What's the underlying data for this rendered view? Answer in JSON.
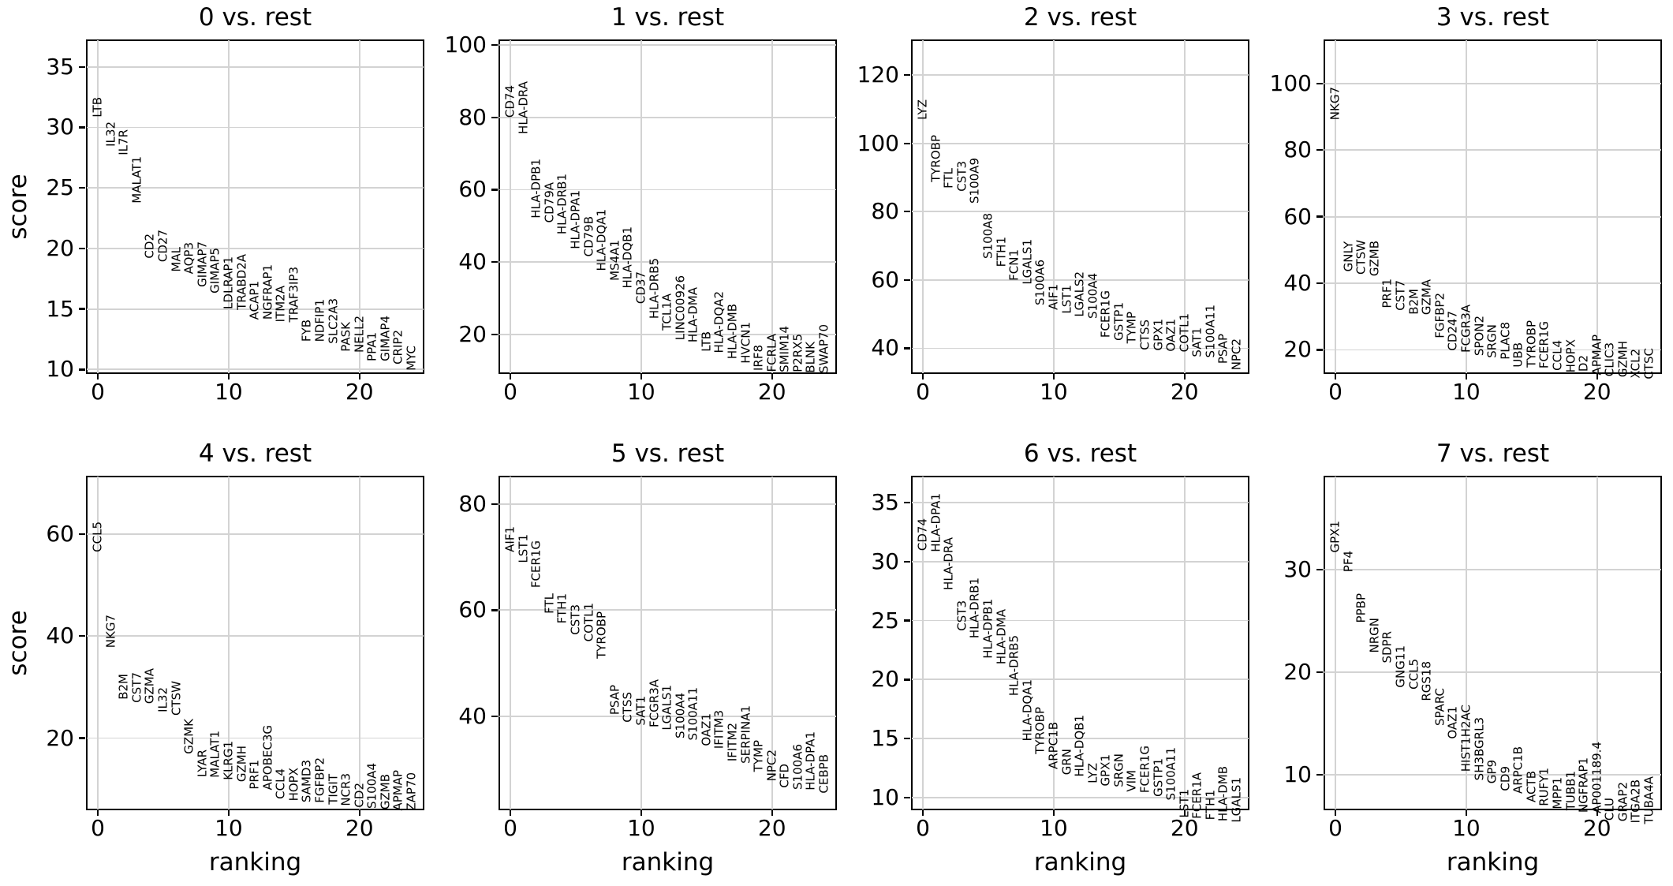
{
  "figure": {
    "xlabel": "ranking",
    "ylabel": "score",
    "background": "#ffffff",
    "grid_color": "#d3d3d3",
    "spine_color": "#000000",
    "grid": true
  },
  "chart_data": [
    {
      "type": "scatter",
      "title": "0 vs. rest",
      "xlabel": "ranking",
      "ylabel": "score",
      "xlim": [
        -0.85,
        24.9
      ],
      "xticks": [
        0,
        10,
        20
      ],
      "ylim": [
        9.7,
        37.2
      ],
      "yticks": [
        10,
        15,
        20,
        25,
        30,
        35
      ],
      "show_xlabel": false,
      "show_ylabel": true,
      "genes": [
        "LTB",
        "IL32",
        "IL7R",
        "MALAT1",
        "CD2",
        "CD27",
        "MAL",
        "AQP3",
        "GIMAP7",
        "GIMAP5",
        "LDLRAP1",
        "TRABD2A",
        "ACAP1",
        "NGFRAP1",
        "ITM2A",
        "TRAF3IP3",
        "FYB",
        "NDFIP1",
        "SLC2A3",
        "PASK",
        "NELL2",
        "PPA1",
        "GIMAP4",
        "CRIP2",
        "MYC"
      ],
      "scores": [
        30.8,
        28.4,
        27.7,
        23.7,
        19.2,
        18.9,
        18.1,
        17.9,
        16.8,
        16.3,
        15.0,
        14.9,
        14.1,
        14.1,
        13.9,
        13.9,
        12.3,
        12.3,
        12.1,
        11.5,
        11.4,
        10.7,
        10.7,
        10.4,
        9.9
      ]
    },
    {
      "type": "scatter",
      "title": "1 vs. rest",
      "xlabel": "ranking",
      "ylabel": "score",
      "xlim": [
        -0.85,
        24.9
      ],
      "xticks": [
        0,
        10,
        20
      ],
      "ylim": [
        9.3,
        101.3
      ],
      "yticks": [
        20,
        40,
        60,
        80,
        100
      ],
      "show_xlabel": false,
      "show_ylabel": false,
      "genes": [
        "CD74",
        "HLA-DRA",
        "HLA-DPB1",
        "CD79A",
        "HLA-DRB1",
        "HLA-DPA1",
        "CD79B",
        "HLA-DQA1",
        "MS4A1",
        "HLA-DQB1",
        "CD37",
        "HLA-DRB5",
        "TCL1A",
        "LINC00926",
        "HLA-DMA",
        "LTB",
        "HLA-DQA2",
        "HLA-DMB",
        "HVCN1",
        "IRF8",
        "FCRLA",
        "SMIM14",
        "P2RX5",
        "BLNK",
        "SWAP70"
      ],
      "scores": [
        80.0,
        75.3,
        52.0,
        50.9,
        47.6,
        43.6,
        41.5,
        37.5,
        34.9,
        32.7,
        28.4,
        24.4,
        21.1,
        18.5,
        17.8,
        15.3,
        14.9,
        13.1,
        12.0,
        9.9,
        9.7,
        9.6,
        9.5,
        9.4,
        9.3
      ]
    },
    {
      "type": "scatter",
      "title": "2 vs. rest",
      "xlabel": "ranking",
      "ylabel": "score",
      "xlim": [
        -0.85,
        24.9
      ],
      "xticks": [
        0,
        10,
        20
      ],
      "ylim": [
        32.7,
        130.2
      ],
      "yticks": [
        40,
        60,
        80,
        100,
        120
      ],
      "show_xlabel": false,
      "show_ylabel": false,
      "genes": [
        "LYZ",
        "TYROBP",
        "FTL",
        "CST3",
        "S100A9",
        "S100A8",
        "FTH1",
        "FCN1",
        "LGALS1",
        "S100A6",
        "AIF1",
        "LST1",
        "LGALS2",
        "S100A4",
        "FCER1G",
        "GSTP1",
        "TYMP",
        "CTSS",
        "GPX1",
        "OAZ1",
        "COTL1",
        "SAT1",
        "S100A11",
        "PSAP",
        "NPC2"
      ],
      "scores": [
        106.9,
        88.6,
        86.7,
        85.8,
        82.3,
        66.3,
        63.8,
        59.8,
        58.6,
        52.5,
        51.3,
        50.2,
        49.2,
        48.6,
        43.0,
        42.1,
        41.5,
        39.5,
        39.2,
        39.0,
        38.8,
        37.5,
        37.2,
        35.5,
        33.5
      ]
    },
    {
      "type": "scatter",
      "title": "3 vs. rest",
      "xlabel": "ranking",
      "ylabel": "score",
      "xlim": [
        -0.85,
        24.9
      ],
      "xticks": [
        0,
        10,
        20
      ],
      "ylim": [
        13.0,
        113.0
      ],
      "yticks": [
        20,
        40,
        60,
        80,
        100
      ],
      "show_xlabel": false,
      "show_ylabel": false,
      "genes": [
        "NKG7",
        "GNLY",
        "CTSW",
        "GZMB",
        "PRF1",
        "CST7",
        "B2M",
        "GZMA",
        "FGFBP2",
        "CD247",
        "FCGR3A",
        "SPON2",
        "SRGN",
        "PLAC8",
        "UBB",
        "TYROBP",
        "FCER1G",
        "CCL4",
        "HOPX",
        "ID2",
        "APMAP",
        "CLIC3",
        "GZMH",
        "XCL2",
        "CTSC"
      ],
      "scores": [
        89.1,
        43.4,
        42.6,
        42.2,
        32.6,
        31.8,
        30.7,
        30.4,
        23.6,
        19.8,
        19.1,
        18.3,
        17.5,
        17.2,
        14.8,
        14.7,
        14.3,
        13.7,
        13.1,
        12.5,
        12.4,
        12.1,
        11.7,
        11.5,
        11.3
      ]
    },
    {
      "type": "scatter",
      "title": "4 vs. rest",
      "xlabel": "ranking",
      "ylabel": "score",
      "xlim": [
        -0.85,
        24.9
      ],
      "xticks": [
        0,
        10,
        20
      ],
      "ylim": [
        6.0,
        71.3
      ],
      "yticks": [
        20,
        40,
        60
      ],
      "show_xlabel": true,
      "show_ylabel": true,
      "genes": [
        "CCL5",
        "NKG7",
        "B2M",
        "CST7",
        "GZMA",
        "IL32",
        "CTSW",
        "GZMK",
        "LYAR",
        "MALAT1",
        "KLRG1",
        "GZMH",
        "PRF1",
        "APOBEC3G",
        "CCL4",
        "HOPX",
        "SAMD3",
        "FGFBP2",
        "TIGIT",
        "NCR3",
        "CD2",
        "S100A4",
        "GZMB",
        "APMAP",
        "ZAP70"
      ],
      "scores": [
        56.5,
        37.7,
        27.6,
        27.0,
        26.7,
        25.0,
        24.4,
        16.9,
        12.4,
        12.3,
        11.7,
        11.4,
        10.0,
        9.8,
        8.0,
        7.7,
        7.4,
        7.3,
        7.0,
        6.6,
        6.3,
        6.1,
        6.0,
        5.8,
        5.7
      ]
    },
    {
      "type": "scatter",
      "title": "5 vs. rest",
      "xlabel": "ranking",
      "ylabel": "score",
      "xlim": [
        -0.85,
        24.9
      ],
      "xticks": [
        0,
        10,
        20
      ],
      "ylim": [
        22.4,
        85.2
      ],
      "yticks": [
        40,
        60,
        80
      ],
      "show_xlabel": true,
      "show_ylabel": false,
      "genes": [
        "AIF1",
        "LST1",
        "FCER1G",
        "FTL",
        "FTH1",
        "CST3",
        "COTL1",
        "TYROBP",
        "PSAP",
        "CTSS",
        "SAT1",
        "FCGR3A",
        "LGALS1",
        "S100A4",
        "S100A11",
        "OAZ1",
        "IFITM3",
        "IFITM2",
        "SERPINA1",
        "TYMP",
        "NPC2",
        "CFD",
        "S100A6",
        "HLA-DPA1",
        "CEBPB"
      ],
      "scores": [
        70.9,
        68.9,
        64.2,
        59.3,
        57.5,
        55.3,
        54.0,
        50.9,
        40.2,
        38.8,
        38.2,
        37.9,
        37.4,
        35.8,
        35.4,
        34.3,
        33.9,
        31.5,
        31.0,
        29.5,
        27.7,
        26.5,
        26.2,
        26.0,
        25.4
      ]
    },
    {
      "type": "scatter",
      "title": "6 vs. rest",
      "xlabel": "ranking",
      "ylabel": "score",
      "xlim": [
        -0.85,
        24.9
      ],
      "xticks": [
        0,
        10,
        20
      ],
      "ylim": [
        9.0,
        37.2
      ],
      "yticks": [
        10,
        15,
        20,
        25,
        30,
        35
      ],
      "show_xlabel": true,
      "show_ylabel": false,
      "genes": [
        "CD74",
        "HLA-DPA1",
        "HLA-DRA",
        "CST3",
        "HLA-DRB1",
        "HLA-DPB1",
        "HLA-DMA",
        "HLA-DRB5",
        "HLA-DQA1",
        "TYROBP",
        "ARPC1B",
        "GRN",
        "HLA-DQB1",
        "LYZ",
        "GPX1",
        "SRGN",
        "VIM",
        "FCER1G",
        "GSTP1",
        "S100A11",
        "LST1",
        "FCER1A",
        "FTH1",
        "HLA-DMB",
        "LGALS1"
      ],
      "scores": [
        30.9,
        30.8,
        27.6,
        24.1,
        23.5,
        21.8,
        21.3,
        18.6,
        14.8,
        13.7,
        12.4,
        11.9,
        11.8,
        11.2,
        11.0,
        10.9,
        10.5,
        10.4,
        10.1,
        9.8,
        8.3,
        8.2,
        8.1,
        8.0,
        7.9
      ]
    },
    {
      "type": "scatter",
      "title": "7 vs. rest",
      "xlabel": "ranking",
      "ylabel": "score",
      "xlim": [
        -0.85,
        24.9
      ],
      "xticks": [
        0,
        10,
        20
      ],
      "ylim": [
        6.6,
        39.1
      ],
      "yticks": [
        10,
        20,
        30
      ],
      "show_xlabel": true,
      "show_ylabel": false,
      "genes": [
        "GPX1",
        "PF4",
        "PPBP",
        "NRGN",
        "SDPR",
        "GNG11",
        "CCL5",
        "RGS18",
        "SPARC",
        "OAZ1",
        "HIST1H2AC",
        "SH3BGRL3",
        "GP9",
        "CD9",
        "ARPC1B",
        "ACTB",
        "RUFY1",
        "MPP1",
        "TUBB1",
        "NGFRAP1",
        "AP001189.4",
        "CLU",
        "GRAP2",
        "ITGA2B",
        "TUBA4A"
      ],
      "scores": [
        31.7,
        29.8,
        24.8,
        21.9,
        20.9,
        18.5,
        18.3,
        17.2,
        14.8,
        13.5,
        10.3,
        9.4,
        9.1,
        8.4,
        8.1,
        7.3,
        6.9,
        6.6,
        6.5,
        6.3,
        6.2,
        5.5,
        5.4,
        5.3,
        5.2
      ]
    }
  ]
}
